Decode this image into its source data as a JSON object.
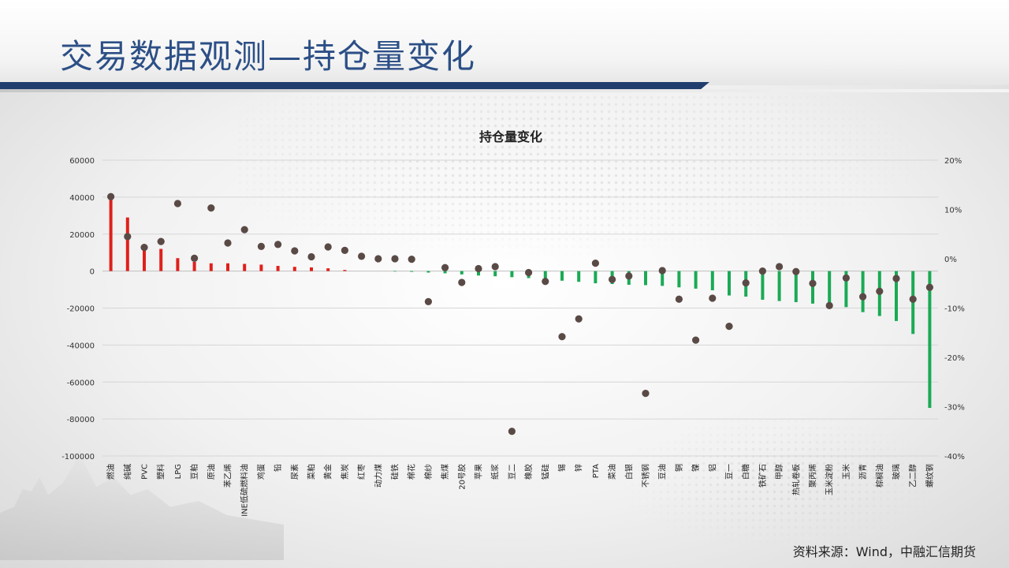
{
  "page": {
    "title": "交易数据观测—持仓量变化",
    "source": "资料来源：Wind，中融汇信期货"
  },
  "colors": {
    "title": "#2c4f86",
    "positive_bar": "#e0201b",
    "negative_bar": "#1aaa55",
    "dot": "#5a4a46"
  },
  "chart_data": {
    "type": "bar",
    "title": "持仓量变化",
    "categories": [
      "燃油",
      "纯碱",
      "PVC",
      "塑料",
      "LPG",
      "豆粕",
      "原油",
      "苯乙烯",
      "INE低硫燃料油",
      "鸡蛋",
      "铅",
      "尿素",
      "菜粕",
      "黄金",
      "焦炭",
      "红枣",
      "动力煤",
      "硅铁",
      "棉花",
      "棉纱",
      "焦煤",
      "20号胶",
      "苹果",
      "纸浆",
      "豆二",
      "橡胶",
      "锰硅",
      "锡",
      "锌",
      "PTA",
      "菜油",
      "白银",
      "不锈钢",
      "豆油",
      "铜",
      "镍",
      "铝",
      "豆一",
      "白糖",
      "铁矿石",
      "甲醇",
      "热轧卷板",
      "聚丙烯",
      "玉米淀粉",
      "玉米",
      "沥青",
      "棕榈油",
      "玻璃",
      "乙二醇",
      "螺纹钢"
    ],
    "series": [
      {
        "axis": "left",
        "values": [
          41000,
          29000,
          13500,
          12000,
          7000,
          5000,
          4200,
          4200,
          3900,
          3500,
          2800,
          2300,
          2000,
          1500,
          600,
          0,
          0,
          -200,
          -400,
          -800,
          -1200,
          -1800,
          -2400,
          -2800,
          -3300,
          -3800,
          -4600,
          -5200,
          -5800,
          -6600,
          -7000,
          -7400,
          -7600,
          -8000,
          -8800,
          -9500,
          -10400,
          -13200,
          -13800,
          -15500,
          -16200,
          -16800,
          -17600,
          -18400,
          -19500,
          -22200,
          -24300,
          -27000,
          -34000,
          -74000
        ]
      },
      {
        "axis": "right",
        "values": [
          12.6,
          4.5,
          2.3,
          3.5,
          11.2,
          0.1,
          10.3,
          3.2,
          5.9,
          2.5,
          2.9,
          1.6,
          0.4,
          2.4,
          1.7,
          0.5,
          0,
          0,
          -0.1,
          -8.7,
          -1.8,
          -4.8,
          -2.0,
          -1.6,
          -35.0,
          -2.8,
          -4.6,
          -15.8,
          -12.2,
          -0.9,
          -4.2,
          -3.5,
          -27.3,
          -2.4,
          -8.2,
          -16.5,
          -8.0,
          -13.7,
          -4.9,
          -2.5,
          -1.6,
          -2.6,
          -5.0,
          -9.5,
          -3.9,
          -7.7,
          -6.6,
          -4.0,
          -8.2,
          -5.8
        ]
      }
    ],
    "ylim_left": [
      -100000,
      60000
    ],
    "yticks_left": [
      "60000",
      "40000",
      "20000",
      "0",
      "-20000",
      "-40000",
      "-60000",
      "-80000",
      "-100000"
    ],
    "ylim_right": [
      -40,
      20
    ],
    "yticks_right": [
      "20%",
      "10%",
      "0%",
      "-10%",
      "-20%",
      "-30%",
      "-40%"
    ],
    "grid": true
  }
}
